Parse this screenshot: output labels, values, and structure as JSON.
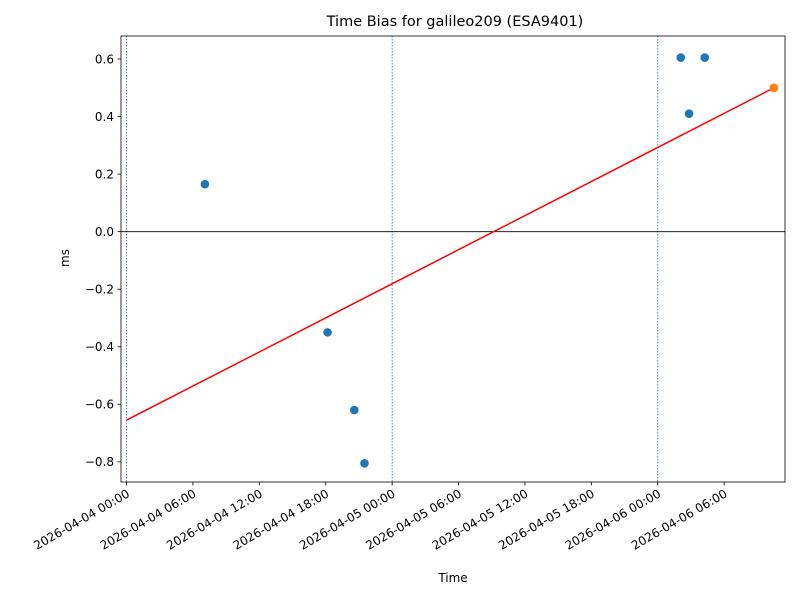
{
  "chart_data": {
    "type": "scatter",
    "title": "Time Bias for galileo209 (ESA9401)",
    "xlabel": "Time",
    "ylabel": "ms",
    "x_is_time": true,
    "xlim": [
      "2026-04-03T23:30",
      "2026-04-06T11:30"
    ],
    "ylim": [
      -0.87,
      0.68
    ],
    "x_ticks": [
      "2026-04-04 00:00",
      "2026-04-04 06:00",
      "2026-04-04 12:00",
      "2026-04-04 18:00",
      "2026-04-05 00:00",
      "2026-04-05 06:00",
      "2026-04-05 12:00",
      "2026-04-05 18:00",
      "2026-04-06 00:00",
      "2026-04-06 06:00"
    ],
    "y_ticks": [
      -0.8,
      -0.6,
      -0.4,
      -0.2,
      0.0,
      0.2,
      0.4,
      0.6
    ],
    "y_tick_labels": [
      "−0.8",
      "−0.6",
      "−0.4",
      "−0.2",
      "0.0",
      "0.2",
      "0.4",
      "0.6"
    ],
    "series": [
      {
        "color": "#1f77b4",
        "points": [
          {
            "x": "2026-04-04T07:05",
            "y": 0.165
          },
          {
            "x": "2026-04-04T18:10",
            "y": -0.35
          },
          {
            "x": "2026-04-04T20:35",
            "y": -0.62
          },
          {
            "x": "2026-04-04T21:30",
            "y": -0.805
          },
          {
            "x": "2026-04-06T02:05",
            "y": 0.605
          },
          {
            "x": "2026-04-06T02:50",
            "y": 0.41
          },
          {
            "x": "2026-04-06T04:15",
            "y": 0.605
          }
        ]
      },
      {
        "color": "#ff7f0e",
        "points": [
          {
            "x": "2026-04-06T10:30",
            "y": 0.5
          }
        ]
      }
    ],
    "fit_line": {
      "color": "#ff0000",
      "from": {
        "x": "2026-04-04T00:00",
        "y": -0.655
      },
      "to": {
        "x": "2026-04-06T10:30",
        "y": 0.5
      }
    },
    "vertical_lines": [
      "2026-04-04T00:00",
      "2026-04-05T00:00",
      "2026-04-06T00:00"
    ],
    "vertical_line_color": "#1f77b4",
    "zero_line": true,
    "grid": false,
    "legend": false
  }
}
